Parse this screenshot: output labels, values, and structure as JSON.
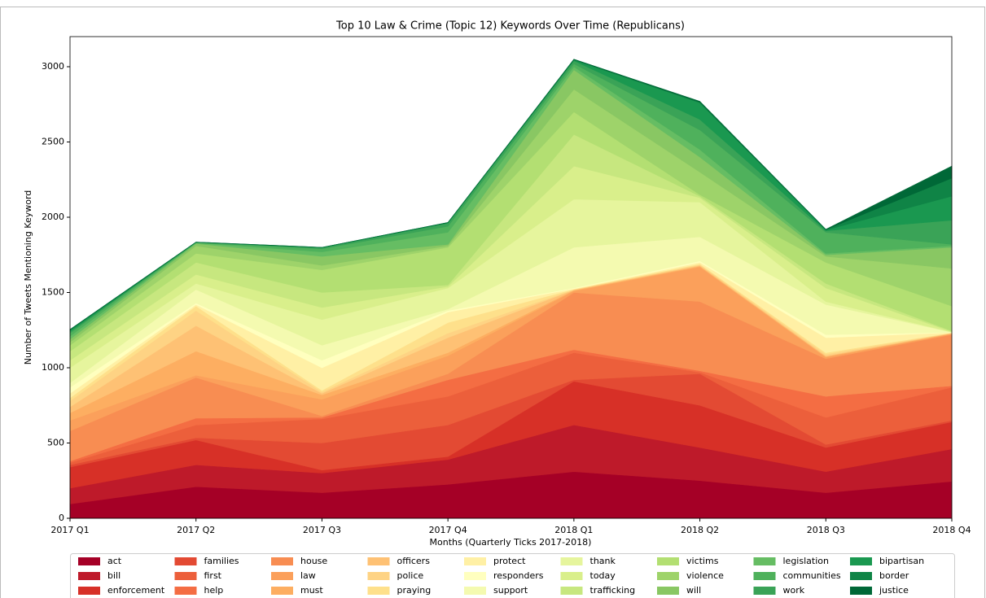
{
  "chart_data": {
    "type": "stacked_area",
    "title": "Top 10 Law & Crime (Topic 12) Keywords Over Time (Republicans)",
    "x_label": "Months (Quarterly Ticks 2017-2018)",
    "y_label": "Number of Tweets Mentioning Keyword",
    "categories": [
      "2017 Q1",
      "2017 Q2",
      "2017 Q3",
      "2017 Q4",
      "2018 Q1",
      "2018 Q2",
      "2018 Q3",
      "2018 Q4"
    ],
    "ylim": [
      0,
      3200
    ],
    "yticks": [
      0,
      500,
      1000,
      1500,
      2000,
      2500,
      3000
    ],
    "series": [
      {
        "name": "act",
        "color": "#a50026",
        "values": [
          95,
          210,
          170,
          225,
          310,
          250,
          170,
          245
        ]
      },
      {
        "name": "bill",
        "color": "#be1a2a",
        "values": [
          105,
          145,
          130,
          165,
          310,
          220,
          140,
          215
        ]
      },
      {
        "name": "enforcement",
        "color": "#d73027",
        "values": [
          140,
          165,
          20,
          20,
          290,
          280,
          160,
          180
        ]
      },
      {
        "name": "families",
        "color": "#e34a33",
        "values": [
          15,
          15,
          180,
          210,
          10,
          210,
          20,
          10
        ]
      },
      {
        "name": "first",
        "color": "#ec5f3b",
        "values": [
          15,
          85,
          160,
          190,
          180,
          10,
          180,
          220
        ]
      },
      {
        "name": "help",
        "color": "#f46d43",
        "values": [
          10,
          45,
          10,
          110,
          20,
          10,
          140,
          10
        ]
      },
      {
        "name": "house",
        "color": "#f88d52",
        "values": [
          200,
          270,
          10,
          40,
          380,
          460,
          250,
          340
        ]
      },
      {
        "name": "law",
        "color": "#fba05b",
        "values": [
          70,
          15,
          110,
          120,
          10,
          230,
          10,
          5
        ]
      },
      {
        "name": "must",
        "color": "#fdae61",
        "values": [
          50,
          160,
          30,
          20,
          5,
          5,
          5,
          3
        ]
      },
      {
        "name": "officers",
        "color": "#fec174",
        "values": [
          40,
          170,
          10,
          100,
          3,
          5,
          5,
          2
        ]
      },
      {
        "name": "police",
        "color": "#fed384",
        "values": [
          40,
          100,
          10,
          30,
          2,
          5,
          10,
          2
        ]
      },
      {
        "name": "praying",
        "color": "#fee08b",
        "values": [
          20,
          30,
          10,
          70,
          2,
          5,
          10,
          1
        ]
      },
      {
        "name": "protect",
        "color": "#fff0a5",
        "values": [
          30,
          10,
          150,
          70,
          3,
          10,
          100,
          1
        ]
      },
      {
        "name": "responders",
        "color": "#ffffbf",
        "values": [
          40,
          10,
          50,
          10,
          5,
          10,
          20,
          1
        ]
      },
      {
        "name": "support",
        "color": "#f4fab0",
        "values": [
          30,
          90,
          100,
          10,
          270,
          160,
          200,
          1
        ]
      },
      {
        "name": "thank",
        "color": "#e6f59d",
        "values": [
          100,
          40,
          170,
          140,
          320,
          230,
          20,
          1
        ]
      },
      {
        "name": "today",
        "color": "#d9ef8b",
        "values": [
          50,
          60,
          80,
          10,
          220,
          30,
          90,
          3
        ]
      },
      {
        "name": "trafficking",
        "color": "#c7e77f",
        "values": [
          60,
          80,
          100,
          10,
          210,
          10,
          30,
          5
        ]
      },
      {
        "name": "victims",
        "color": "#b3df72",
        "values": [
          40,
          60,
          150,
          250,
          150,
          10,
          140,
          165
        ]
      },
      {
        "name": "violence",
        "color": "#9ed36a",
        "values": [
          20,
          50,
          30,
          10,
          150,
          150,
          40,
          250
        ]
      },
      {
        "name": "will",
        "color": "#89c763",
        "values": [
          20,
          15,
          60,
          10,
          130,
          100,
          10,
          140
        ]
      },
      {
        "name": "legislation",
        "color": "#66bd63",
        "values": [
          20,
          5,
          30,
          80,
          20,
          50,
          10,
          10
        ]
      },
      {
        "name": "communities",
        "color": "#4fb15c",
        "values": [
          20,
          2,
          20,
          40,
          20,
          130,
          140,
          10
        ]
      },
      {
        "name": "work",
        "color": "#3aa357",
        "values": [
          10,
          1,
          7,
          20,
          20,
          70,
          10,
          160
        ]
      },
      {
        "name": "bipartisan",
        "color": "#1a9850",
        "values": [
          10,
          1,
          2,
          3,
          5,
          110,
          5,
          160
        ]
      },
      {
        "name": "border",
        "color": "#0f8446",
        "values": [
          3,
          1,
          1,
          2,
          3,
          5,
          3,
          120
        ]
      },
      {
        "name": "justice",
        "color": "#006837",
        "values": [
          2,
          0,
          0,
          0,
          2,
          5,
          2,
          80
        ]
      }
    ]
  }
}
